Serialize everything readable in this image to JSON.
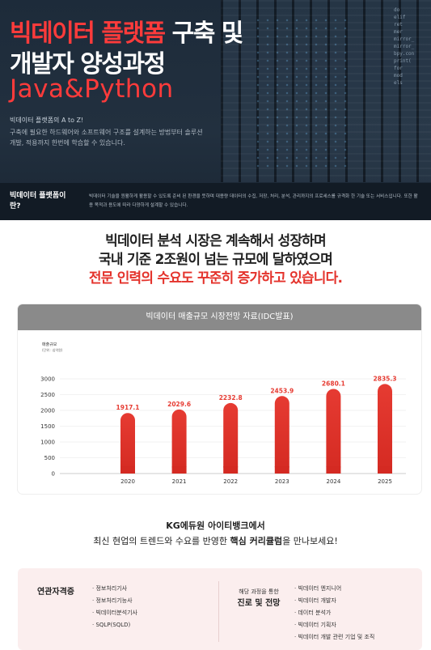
{
  "hero": {
    "title_line1_red": "빅데이터 플랫폼",
    "title_line1_white": " 구축 및",
    "title_line2": "개발자 양성과정",
    "title_line3": "Java&Python",
    "sub_heading": "빅데이터 플랫폼의 A to Z!",
    "sub_text": "구축에 필요한 하드웨어와 소프트웨어 구조를 설계하는 방법부터 솔루션 개발, 적용까지 한번에 학습할 수 있습니다.",
    "code_lines": [
      "do",
      "elif",
      "ret",
      "mer",
      "mirror_",
      "mirror_",
      "bpy.con",
      "print(",
      "for",
      "mod",
      "els"
    ]
  },
  "band": {
    "label": "빅데이터 플랫폼이란?",
    "description": "빅데이터 기술을 원활하게 활용할 수 있도록 준비 된 환경을 뜻하며 대용량 데이터의 수집, 저장, 처리, 분석, 관리까지의 프로세스를 규격화 한 기술 또는 서비스입니다. 또한 활용 목적과 용도에 따라 다양하게 설계할 수 있습니다."
  },
  "headline": {
    "line1": "빅데이터 분석 시장은 계속해서 성장하며",
    "line2": "국내 기준 2조원이 넘는 규모에 달하였으며",
    "line3": "전문 인력의 수요도 꾸준히 증가하고 있습니다."
  },
  "chart_card": {
    "title": "빅데이터 매출규모 시장전망 자료(IDC발표)"
  },
  "chart_data": {
    "type": "bar",
    "title": "빅데이터 매출규모 시장전망 자료(IDC발표)",
    "ylabel": "매출규모",
    "yunit": "(단위 : 십억원)",
    "categories": [
      "2020",
      "2021",
      "2022",
      "2023",
      "2024",
      "2025"
    ],
    "values": [
      1917.1,
      2029.6,
      2232.8,
      2453.9,
      2680.1,
      2835.3
    ],
    "value_labels": [
      "1917.1",
      "2029.6",
      "2232.8",
      "2453.9",
      "2680.1",
      "2835.3"
    ],
    "yticks": [
      "0",
      "500",
      "1000",
      "1500",
      "2000",
      "2500",
      "3000"
    ],
    "ylim": [
      0,
      3000
    ],
    "bar_color": "#e63b32",
    "label_color": "#e63b32"
  },
  "kg": {
    "line1": "KG에듀원 아이티뱅크에서",
    "line2_pre": "최신 현업의 트렌드와 수요를 반영한 ",
    "line2_bold": "핵심 커리큘럼",
    "line2_post": "을 만나보세요!"
  },
  "bottom": {
    "cert_title": "연관자격증",
    "certs": [
      "정보처리기사",
      "정보처리기능사",
      "빅데이터분석기사",
      "SQLP(SQLD)"
    ],
    "path_small": "해당 과정을 통한",
    "path_big": "진로 및 전망",
    "paths": [
      "빅데이터 엔지니어",
      "빅데이터 개발자",
      "데이터 분석가",
      "빅데이터 기획자",
      "빅데이터 개발 관련 기업 및 조직"
    ]
  }
}
